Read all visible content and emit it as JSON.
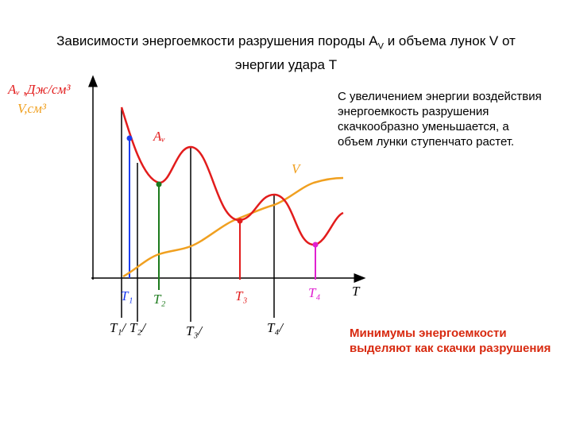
{
  "title": {
    "before": "Зависимости энергоемкости разрушения породы A",
    "sub": "V",
    "after": "и объема лунок V от",
    "line2": "энергии удара Т"
  },
  "axis": {
    "y_label": "Aᵥ ,Дж/см³",
    "y2_label": "V,см³",
    "x_label": "T"
  },
  "curves": [
    "Aᵥ",
    "V"
  ],
  "markers": [
    "T₁",
    "T₂",
    "T₃",
    "T₄"
  ],
  "boundaries": [
    "T₁/",
    "T₂/",
    "T₃/",
    "T₄/"
  ],
  "note": "С увеличением энергии воздействия энергоемкость разрушения скачкообразно уменьшается, а объем лунки ступенчато растет.",
  "conclusion": "Минимумы энергоемкости выделяют как скачки разрушения"
}
